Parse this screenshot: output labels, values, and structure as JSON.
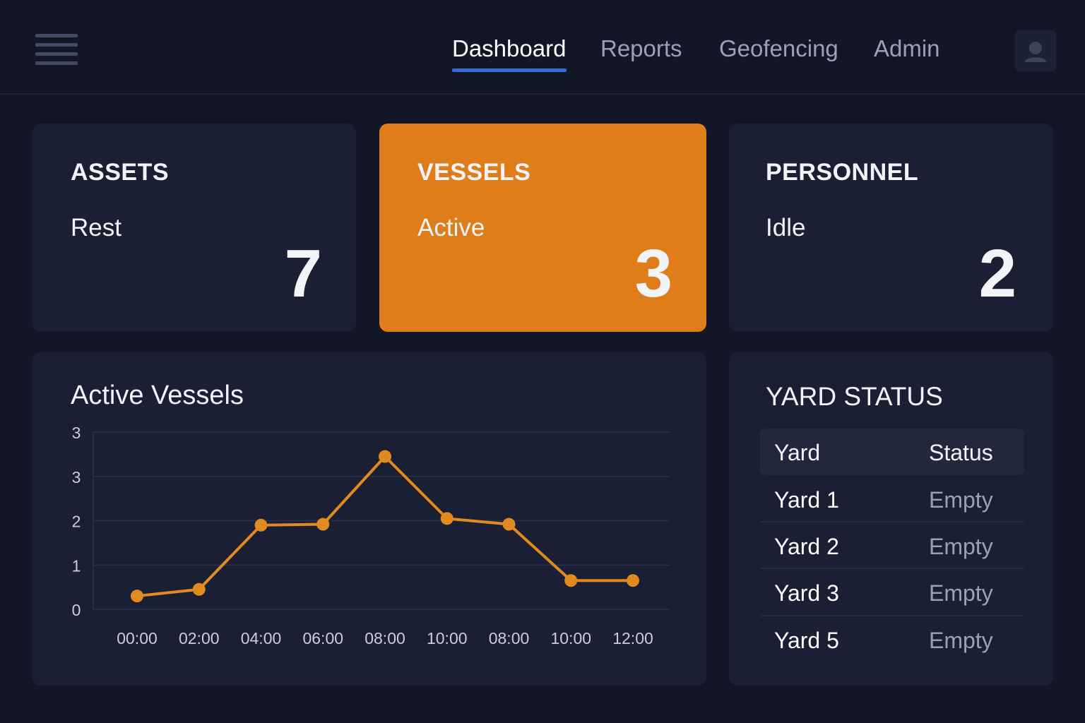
{
  "nav": {
    "items": [
      {
        "label": "Dashboard",
        "active": true
      },
      {
        "label": "Reports",
        "active": false
      },
      {
        "label": "Geofencing",
        "active": false
      },
      {
        "label": "Admin",
        "active": false
      }
    ]
  },
  "cards": [
    {
      "title": "ASSETS",
      "subtitle": "Rest",
      "value": "7"
    },
    {
      "title": "VESSELS",
      "subtitle": "Active",
      "value": "3"
    },
    {
      "title": "PERSONNEL",
      "subtitle": "Idle",
      "value": "2"
    }
  ],
  "chart_panel": {
    "title": "Active Vessels"
  },
  "yard_panel": {
    "title": "YARD STATUS",
    "columns": [
      "Yard",
      "Status"
    ],
    "rows": [
      {
        "yard": "Yard 1",
        "status": "Empty"
      },
      {
        "yard": "Yard 2",
        "status": "Empty"
      },
      {
        "yard": "Yard 3",
        "status": "Empty"
      },
      {
        "yard": "Yard 5",
        "status": "Empty"
      }
    ]
  },
  "colors": {
    "background": "#121626",
    "card": "#1b1f33",
    "accent": "#df7d1a",
    "nav_active_underline": "#2f6fd6",
    "line": "#e08a20"
  },
  "icons": {
    "menu": "hamburger-icon",
    "user": "user-avatar-icon"
  },
  "chart_data": {
    "type": "line",
    "title": "Active Vessels",
    "xlabel": "",
    "ylabel": "",
    "categories": [
      "00:00",
      "02:00",
      "04:00",
      "06:00",
      "08:00",
      "10:00",
      "08:00",
      "10:00",
      "12:00"
    ],
    "y_tick_labels": [
      "0",
      "1",
      "2",
      "3",
      "3"
    ],
    "ylim": [
      0,
      4
    ],
    "grid": true,
    "series": [
      {
        "values": [
          0.3,
          0.45,
          1.9,
          1.92,
          3.45,
          2.05,
          1.92,
          0.65,
          0.65
        ]
      }
    ]
  }
}
